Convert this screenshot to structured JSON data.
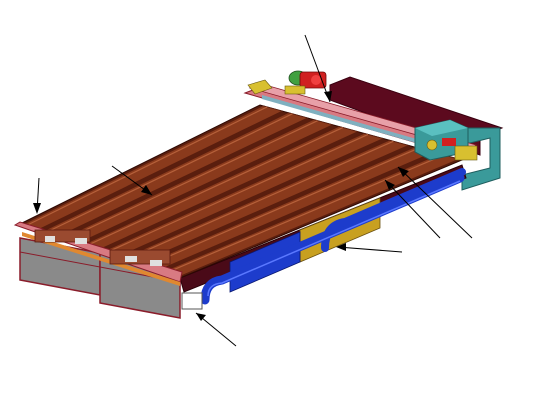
{
  "figure": {
    "kind": "isometric CAD rendering of a long table machine with cylindrical rollers, a gantry carriage, motor unit and side piping",
    "leader_line_count": 7,
    "labels": []
  },
  "palette": {
    "background": "#ffffff",
    "roller_dark": "#5a1e0e",
    "roller_mid": "#8a3a1c",
    "roller_light": "#b5603a",
    "frame_gray": "#8a8a8a",
    "frame_outline": "#8a1c2a",
    "gantry_pink": "#d87a82",
    "motor_teal": "#3a9a9a",
    "motor_red": "#d02020",
    "motor_green": "#40a040",
    "dark_block": "#5c0a1e",
    "pipe_blue": "#1d3ccc",
    "panel_gold": "#c8a020",
    "bracket_yellow": "#d8c030",
    "leader_black": "#000000"
  }
}
